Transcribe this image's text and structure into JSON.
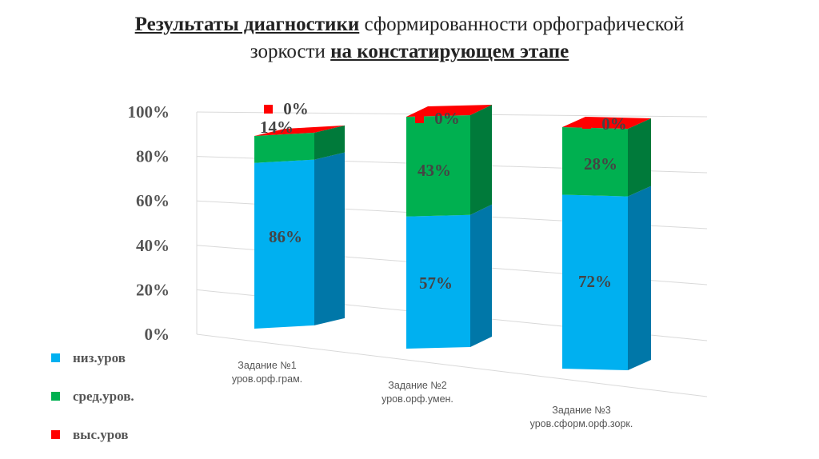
{
  "title": {
    "part1": "Результаты диагностики",
    "part2": " сформированности орфографической",
    "part3": "зоркости ",
    "part4": "на констатирующем этапе"
  },
  "chart_data": {
    "type": "bar",
    "stacked": true,
    "percent": true,
    "three_d": true,
    "grid": true,
    "legend_position": "bottom-left",
    "y_ticks": [
      "0%",
      "20%",
      "40%",
      "60%",
      "80%",
      "100%"
    ],
    "ylim": [
      0,
      100
    ],
    "categories": [
      [
        "Задание №1",
        "уров.орф.грам."
      ],
      [
        "Задание №2",
        "уров.орф.умен."
      ],
      [
        "Задание №3",
        "уров.сформ.орф.зорк."
      ]
    ],
    "series": [
      {
        "name": "низ.уров",
        "values": [
          86,
          57,
          72
        ],
        "labels": [
          "86%",
          "57%",
          "72%"
        ],
        "color": "#00b0f0",
        "side_color": "#0077a8"
      },
      {
        "name": "сред.уров.",
        "values": [
          14,
          43,
          28
        ],
        "labels": [
          "14%",
          "43%",
          "28%"
        ],
        "color": "#00b050",
        "side_color": "#007a3a"
      },
      {
        "name": "выс.уров",
        "values": [
          0,
          0,
          0
        ],
        "labels": [
          "0%",
          "0%",
          "0%"
        ],
        "color": "#ff0000",
        "side_color": "#c00000"
      }
    ]
  }
}
